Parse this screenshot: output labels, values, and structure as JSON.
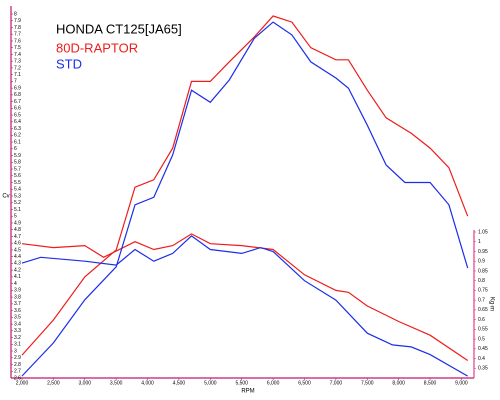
{
  "chart_data": {
    "type": "line",
    "title": "HONDA CT125[JA65]",
    "xlabel": "RPM",
    "ylabel": "Cv",
    "y2label": "Kg·m",
    "xlim": [
      2000,
      9200
    ],
    "xticks": [
      {
        "value": 2000,
        "label": "2,000"
      },
      {
        "value": 2500,
        "label": "2,500"
      },
      {
        "value": 3000,
        "label": "3,000"
      },
      {
        "value": 3500,
        "label": "3,500"
      },
      {
        "value": 4000,
        "label": "4,000"
      },
      {
        "value": 4500,
        "label": "4,500"
      },
      {
        "value": 5000,
        "label": "5,000"
      },
      {
        "value": 5500,
        "label": "5,500"
      },
      {
        "value": 6000,
        "label": "6,000"
      },
      {
        "value": 6500,
        "label": "6,500"
      },
      {
        "value": 7000,
        "label": "7,000"
      },
      {
        "value": 7500,
        "label": "7,500"
      },
      {
        "value": 8000,
        "label": "8,000"
      },
      {
        "value": 8500,
        "label": "8,500"
      },
      {
        "value": 9000,
        "label": "9,000"
      }
    ],
    "ylim": [
      2.6,
      8
    ],
    "yticks": [
      2.6,
      2.7,
      2.8,
      2.9,
      3,
      3.1,
      3.2,
      3.3,
      3.4,
      3.5,
      3.6,
      3.7,
      3.8,
      3.9,
      4,
      4.1,
      4.2,
      4.3,
      4.4,
      4.5,
      4.6,
      4.7,
      4.8,
      4.9,
      5,
      5.1,
      5.2,
      5.3,
      5.4,
      5.5,
      5.6,
      5.7,
      5.8,
      5.9,
      6,
      6.1,
      6.2,
      6.3,
      6.4,
      6.5,
      6.6,
      6.7,
      6.8,
      6.9,
      7,
      7.1,
      7.2,
      7.3,
      7.4,
      7.5,
      7.6,
      7.7,
      7.8,
      7.9,
      8
    ],
    "y2lim": [
      0.3,
      1.05
    ],
    "y2ticks": [
      0.35,
      0.4,
      0.45,
      0.5,
      0.55,
      0.6,
      0.65,
      0.7,
      0.75,
      0.8,
      0.85,
      0.9,
      0.95,
      1,
      1.05
    ],
    "series": [
      {
        "name": "80D-RAPTOR",
        "color": "#ee1c1c",
        "power": {
          "x": [
            2000,
            2500,
            3000,
            3500,
            3800,
            4100,
            4400,
            4700,
            5000,
            5300,
            5700,
            6000,
            6300,
            6600,
            7000,
            7200,
            7500,
            7800,
            8200,
            8500,
            8800,
            9100
          ],
          "values": [
            2.94,
            3.46,
            4.1,
            4.5,
            5.43,
            5.54,
            6.01,
            7.0,
            7.0,
            7.29,
            7.66,
            7.97,
            7.88,
            7.5,
            7.32,
            7.32,
            6.87,
            6.46,
            6.23,
            6.01,
            5.72,
            5.0
          ]
        },
        "torque": {
          "x": [
            2000,
            2500,
            3000,
            3300,
            3800,
            4100,
            4400,
            4700,
            5000,
            5500,
            6000,
            6500,
            7000,
            7200,
            7500,
            8000,
            8500,
            9100
          ],
          "values": [
            0.99,
            0.97,
            0.98,
            0.92,
            1.0,
            0.96,
            0.98,
            1.04,
            0.99,
            0.98,
            0.96,
            0.83,
            0.75,
            0.74,
            0.67,
            0.59,
            0.52,
            0.39
          ]
        }
      },
      {
        "name": "STD",
        "color": "#1c2ee8",
        "power": {
          "x": [
            2000,
            2500,
            3000,
            3500,
            3800,
            4100,
            4400,
            4700,
            5000,
            5300,
            5700,
            6000,
            6300,
            6600,
            7000,
            7200,
            7500,
            7800,
            8100,
            8500,
            8800,
            9100
          ],
          "values": [
            2.63,
            3.12,
            3.76,
            4.25,
            5.17,
            5.28,
            5.91,
            6.87,
            6.69,
            7.02,
            7.64,
            7.88,
            7.69,
            7.29,
            7.05,
            6.9,
            6.35,
            5.76,
            5.5,
            5.5,
            5.17,
            4.23
          ]
        },
        "torque": {
          "x": [
            2000,
            2300,
            3000,
            3500,
            3800,
            4100,
            4400,
            4700,
            5000,
            5500,
            5800,
            6000,
            6500,
            7000,
            7500,
            7900,
            8200,
            8500,
            9100
          ],
          "values": [
            0.89,
            0.92,
            0.9,
            0.88,
            0.96,
            0.9,
            0.94,
            1.03,
            0.96,
            0.94,
            0.97,
            0.95,
            0.8,
            0.7,
            0.53,
            0.47,
            0.46,
            0.42,
            0.31
          ]
        }
      }
    ]
  }
}
